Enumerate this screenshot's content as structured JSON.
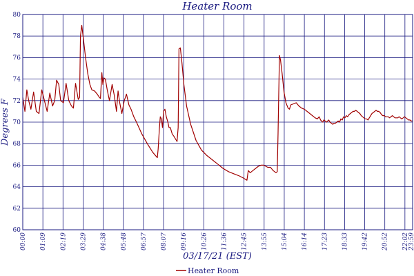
{
  "chart_data": {
    "type": "line",
    "title": "Heater Room",
    "xlabel": "03/17/21 (EST)",
    "ylabel": "Degrees F",
    "ylim": [
      60,
      80
    ],
    "ytick_step": 2,
    "xlim_minutes": [
      0,
      1440
    ],
    "grid": true,
    "legend": "bottom-center",
    "x_ticks": [
      "00:00",
      "01:09",
      "02:19",
      "03:29",
      "04:38",
      "05:48",
      "06:57",
      "08:07",
      "09:16",
      "10:26",
      "11:36",
      "12:45",
      "13:55",
      "15:04",
      "16:14",
      "17:23",
      "18:33",
      "19:42",
      "20:52",
      "22:02",
      "23:11",
      "23:59"
    ],
    "series": [
      {
        "name": "Heater Room",
        "color": "#a00000",
        "points": [
          [
            0,
            72.3
          ],
          [
            8,
            71.0
          ],
          [
            15,
            73.0
          ],
          [
            22,
            72.0
          ],
          [
            30,
            71.2
          ],
          [
            40,
            72.8
          ],
          [
            50,
            71.0
          ],
          [
            60,
            70.8
          ],
          [
            70,
            73.0
          ],
          [
            80,
            72.0
          ],
          [
            90,
            71.0
          ],
          [
            100,
            72.7
          ],
          [
            110,
            71.5
          ],
          [
            118,
            72.0
          ],
          [
            125,
            73.9
          ],
          [
            133,
            73.5
          ],
          [
            140,
            72.0
          ],
          [
            150,
            71.8
          ],
          [
            160,
            73.6
          ],
          [
            170,
            72.0
          ],
          [
            180,
            71.5
          ],
          [
            187,
            71.3
          ],
          [
            195,
            73.6
          ],
          [
            205,
            72.1
          ],
          [
            210,
            72.3
          ],
          [
            213,
            78.0
          ],
          [
            218,
            79.0
          ],
          [
            225,
            77.5
          ],
          [
            232,
            76.0
          ],
          [
            240,
            74.5
          ],
          [
            248,
            73.5
          ],
          [
            255,
            73.0
          ],
          [
            265,
            72.9
          ],
          [
            275,
            72.6
          ],
          [
            283,
            72.3
          ],
          [
            287,
            72.2
          ],
          [
            292,
            74.6
          ],
          [
            296,
            73.5
          ],
          [
            300,
            74.1
          ],
          [
            305,
            74.0
          ],
          [
            312,
            73.0
          ],
          [
            320,
            72.0
          ],
          [
            330,
            73.5
          ],
          [
            338,
            72.5
          ],
          [
            346,
            71.0
          ],
          [
            352,
            72.9
          ],
          [
            358,
            71.8
          ],
          [
            366,
            70.8
          ],
          [
            375,
            72.0
          ],
          [
            383,
            72.6
          ],
          [
            392,
            71.6
          ],
          [
            400,
            71.2
          ],
          [
            410,
            70.5
          ],
          [
            420,
            70.0
          ],
          [
            440,
            68.9
          ],
          [
            460,
            68.0
          ],
          [
            480,
            67.2
          ],
          [
            497,
            66.7
          ],
          [
            500,
            67.5
          ],
          [
            505,
            69.5
          ],
          [
            508,
            70.5
          ],
          [
            512,
            70.3
          ],
          [
            516,
            69.5
          ],
          [
            520,
            71.0
          ],
          [
            525,
            71.2
          ],
          [
            530,
            70.5
          ],
          [
            536,
            70.0
          ],
          [
            540,
            69.5
          ],
          [
            545,
            69.5
          ],
          [
            552,
            68.9
          ],
          [
            558,
            68.7
          ],
          [
            565,
            68.4
          ],
          [
            570,
            68.2
          ],
          [
            574,
            69.5
          ],
          [
            577,
            76.8
          ],
          [
            582,
            76.9
          ],
          [
            588,
            75.5
          ],
          [
            595,
            73.5
          ],
          [
            605,
            71.5
          ],
          [
            620,
            69.8
          ],
          [
            640,
            68.3
          ],
          [
            660,
            67.4
          ],
          [
            680,
            66.9
          ],
          [
            700,
            66.5
          ],
          [
            720,
            66.1
          ],
          [
            740,
            65.7
          ],
          [
            760,
            65.4
          ],
          [
            780,
            65.2
          ],
          [
            800,
            65.0
          ],
          [
            815,
            64.8
          ],
          [
            828,
            64.6
          ],
          [
            833,
            65.5
          ],
          [
            840,
            65.3
          ],
          [
            850,
            65.5
          ],
          [
            860,
            65.7
          ],
          [
            870,
            65.9
          ],
          [
            880,
            66.0
          ],
          [
            890,
            66.0
          ],
          [
            905,
            65.8
          ],
          [
            915,
            65.8
          ],
          [
            925,
            65.5
          ],
          [
            935,
            65.3
          ],
          [
            940,
            65.4
          ],
          [
            943,
            69.0
          ],
          [
            945,
            72.0
          ],
          [
            948,
            76.2
          ],
          [
            952,
            75.8
          ],
          [
            958,
            74.5
          ],
          [
            965,
            72.8
          ],
          [
            972,
            71.8
          ],
          [
            980,
            71.3
          ],
          [
            985,
            71.2
          ],
          [
            990,
            71.6
          ],
          [
            1000,
            71.7
          ],
          [
            1010,
            71.8
          ],
          [
            1020,
            71.5
          ],
          [
            1030,
            71.3
          ],
          [
            1040,
            71.2
          ],
          [
            1050,
            71.0
          ],
          [
            1060,
            70.8
          ],
          [
            1070,
            70.6
          ],
          [
            1080,
            70.4
          ],
          [
            1088,
            70.3
          ],
          [
            1095,
            70.5
          ],
          [
            1100,
            70.2
          ],
          [
            1108,
            70.0
          ],
          [
            1112,
            70.2
          ],
          [
            1117,
            70.1
          ],
          [
            1122,
            70.0
          ],
          [
            1126,
            70.1
          ],
          [
            1130,
            70.2
          ],
          [
            1135,
            70.0
          ],
          [
            1140,
            69.9
          ],
          [
            1145,
            69.8
          ],
          [
            1150,
            69.9
          ],
          [
            1155,
            69.9
          ],
          [
            1160,
            70.0
          ],
          [
            1165,
            70.1
          ],
          [
            1170,
            70.0
          ],
          [
            1175,
            70.3
          ],
          [
            1180,
            70.2
          ],
          [
            1185,
            70.5
          ],
          [
            1190,
            70.4
          ],
          [
            1195,
            70.6
          ],
          [
            1200,
            70.5
          ],
          [
            1205,
            70.7
          ],
          [
            1210,
            70.8
          ],
          [
            1215,
            70.9
          ],
          [
            1220,
            71.0
          ],
          [
            1225,
            71.0
          ],
          [
            1230,
            71.1
          ],
          [
            1235,
            71.0
          ],
          [
            1240,
            70.9
          ],
          [
            1245,
            70.8
          ],
          [
            1250,
            70.6
          ],
          [
            1255,
            70.5
          ],
          [
            1260,
            70.4
          ],
          [
            1265,
            70.3
          ],
          [
            1270,
            70.3
          ],
          [
            1275,
            70.2
          ],
          [
            1280,
            70.4
          ],
          [
            1285,
            70.6
          ],
          [
            1290,
            70.8
          ],
          [
            1295,
            70.9
          ],
          [
            1300,
            71.0
          ],
          [
            1305,
            71.1
          ],
          [
            1310,
            71.0
          ],
          [
            1315,
            71.0
          ],
          [
            1320,
            70.9
          ],
          [
            1325,
            70.7
          ],
          [
            1330,
            70.6
          ],
          [
            1335,
            70.6
          ],
          [
            1340,
            70.5
          ],
          [
            1345,
            70.5
          ],
          [
            1350,
            70.5
          ],
          [
            1355,
            70.4
          ],
          [
            1360,
            70.5
          ],
          [
            1365,
            70.6
          ],
          [
            1370,
            70.5
          ],
          [
            1375,
            70.4
          ],
          [
            1380,
            70.4
          ],
          [
            1385,
            70.4
          ],
          [
            1390,
            70.5
          ],
          [
            1395,
            70.4
          ],
          [
            1400,
            70.3
          ],
          [
            1405,
            70.4
          ],
          [
            1410,
            70.5
          ],
          [
            1415,
            70.4
          ],
          [
            1420,
            70.3
          ],
          [
            1425,
            70.2
          ],
          [
            1430,
            70.2
          ],
          [
            1435,
            70.1
          ],
          [
            1440,
            70.1
          ]
        ]
      }
    ]
  }
}
